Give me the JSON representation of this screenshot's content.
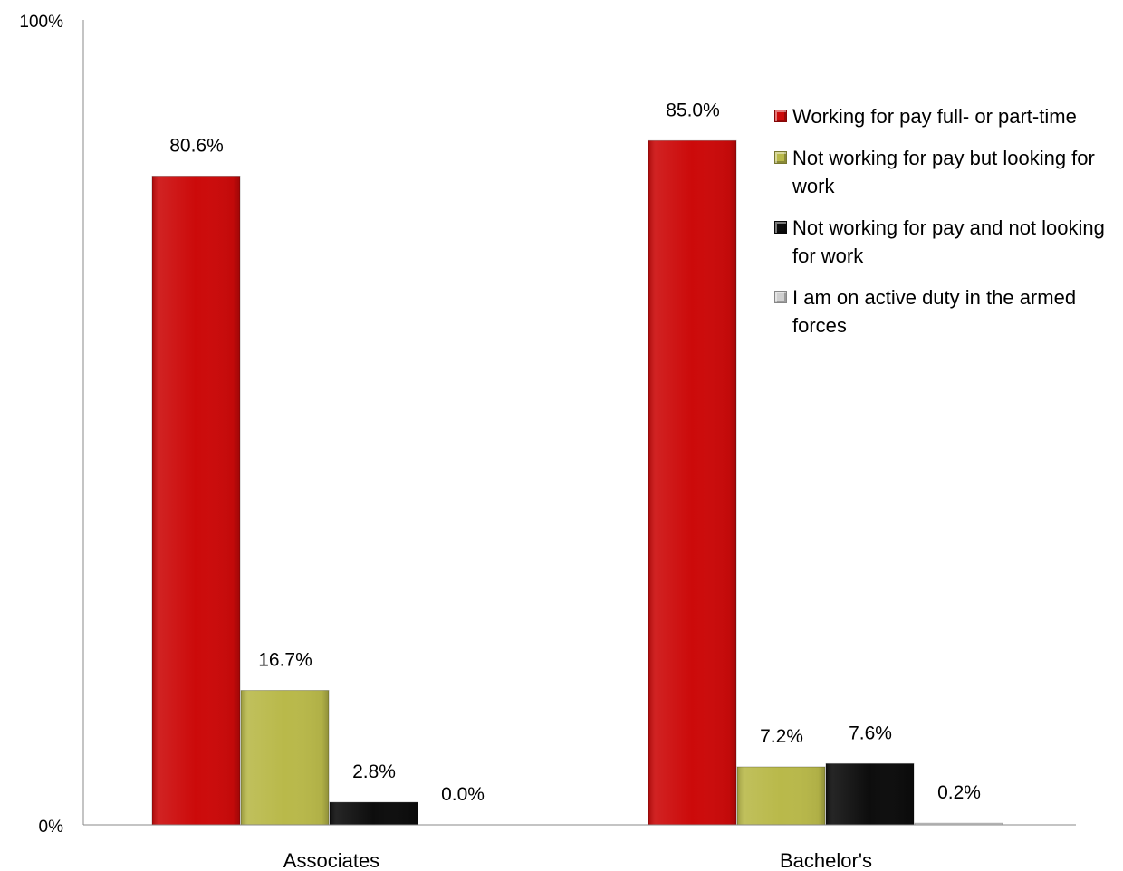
{
  "chart_data": {
    "type": "bar",
    "categories": [
      "Associates",
      "Bachelor's"
    ],
    "series": [
      {
        "name": "Working for pay full- or part-time",
        "values": [
          80.6,
          85.0
        ],
        "color": "#cc0a0a",
        "labels": [
          "80.6%",
          "85.0%"
        ]
      },
      {
        "name": "Not working for pay but looking for work",
        "values": [
          16.7,
          7.2
        ],
        "color": "#b9b94a",
        "labels": [
          "16.7%",
          "7.2%"
        ]
      },
      {
        "name": "Not working for pay and not looking for work",
        "values": [
          2.8,
          7.6
        ],
        "color": "#0d0d0d",
        "labels": [
          "2.8%",
          "7.6%"
        ]
      },
      {
        "name": "I am on active duty in the armed forces",
        "values": [
          0.0,
          0.2
        ],
        "color": "#d0d0d0",
        "labels": [
          "0.0%",
          "0.2%"
        ]
      }
    ],
    "ylim": [
      0,
      100
    ],
    "yticks": [
      "0%",
      "100%"
    ],
    "legend_position": "right",
    "grid": false,
    "title": "",
    "xlabel": "",
    "ylabel": ""
  }
}
